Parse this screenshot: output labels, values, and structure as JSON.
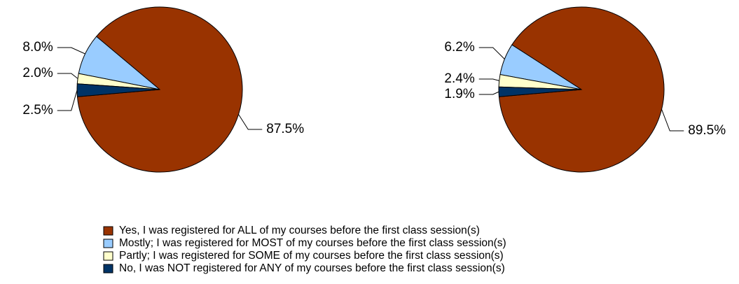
{
  "legend": {
    "categories": [
      "Yes, I was registered for ALL of my courses before the first class session(s)",
      "Mostly; I was registered for MOST of my courses before the first class session(s)",
      "Partly; I was registered for SOME of my courses before the first class session(s)",
      "No, I was NOT registered for ANY of my courses before the first class session(s)"
    ],
    "colors": [
      "#993300",
      "#99ccff",
      "#ffffcc",
      "#003366"
    ]
  },
  "chart_data": [
    {
      "type": "pie",
      "values": [
        87.5,
        8.0,
        2.0,
        2.5
      ],
      "value_labels": [
        "87.5%",
        "8.0%",
        "2.0%",
        "2.5%"
      ]
    },
    {
      "type": "pie",
      "values": [
        89.5,
        6.2,
        2.4,
        1.9
      ],
      "value_labels": [
        "89.5%",
        "6.2%",
        "2.4%",
        "1.9%"
      ]
    }
  ]
}
